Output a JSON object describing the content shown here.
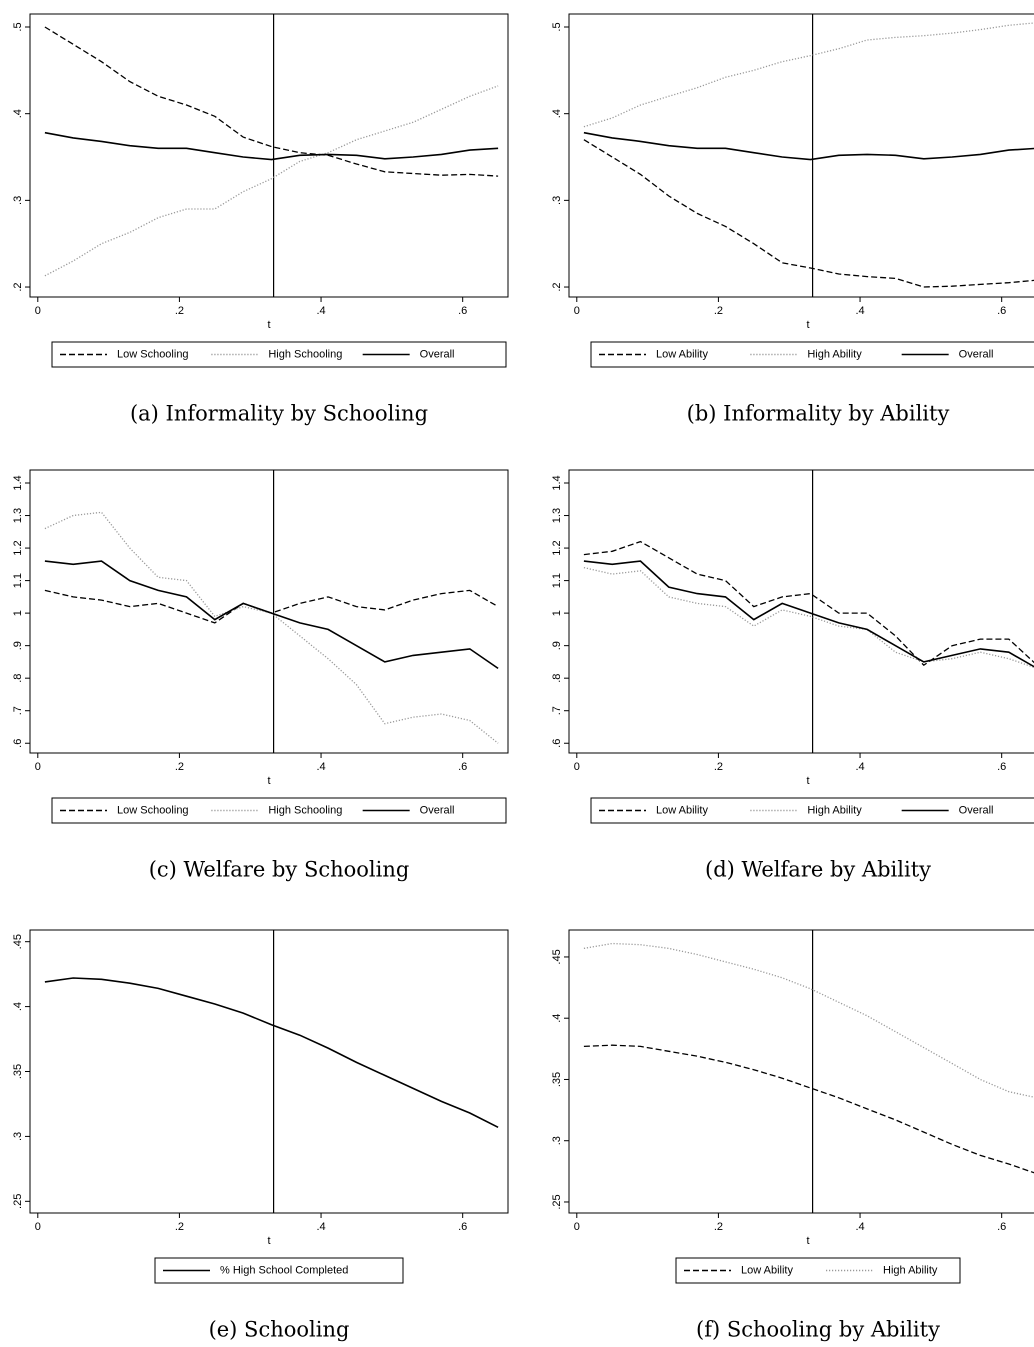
{
  "chart_data": [
    {
      "type": "line",
      "caption": "(a) Informality by Schooling",
      "xlabel": "t",
      "x": [
        0.01,
        0.05,
        0.09,
        0.13,
        0.17,
        0.21,
        0.25,
        0.29,
        0.33,
        0.37,
        0.41,
        0.45,
        0.49,
        0.53,
        0.57,
        0.61,
        0.65
      ],
      "series": [
        {
          "name": "Low Schooling",
          "color": "#000000",
          "dash": "dashed",
          "values": [
            0.5,
            0.48,
            0.46,
            0.437,
            0.42,
            0.41,
            0.397,
            0.373,
            0.362,
            0.355,
            0.352,
            0.342,
            0.333,
            0.331,
            0.329,
            0.33,
            0.328
          ]
        },
        {
          "name": "High Schooling",
          "color": "#999999",
          "dash": "dotted",
          "values": [
            0.213,
            0.23,
            0.25,
            0.263,
            0.28,
            0.29,
            0.29,
            0.31,
            0.325,
            0.345,
            0.355,
            0.37,
            0.38,
            0.39,
            0.405,
            0.42,
            0.432
          ]
        },
        {
          "name": "Overall",
          "color": "#000000",
          "dash": "solid",
          "values": [
            0.378,
            0.372,
            0.368,
            0.363,
            0.36,
            0.36,
            0.355,
            0.35,
            0.347,
            0.352,
            0.353,
            0.352,
            0.348,
            0.35,
            0.353,
            0.358,
            0.36
          ]
        }
      ],
      "xlim": [
        -0.011,
        0.664
      ],
      "xticks": [
        0,
        {
          "value": 0.2,
          "label": ".2"
        },
        {
          "value": 0.4,
          "label": ".4"
        },
        {
          "value": 0.6,
          "label": ".6"
        }
      ],
      "ylim": [
        0.1885,
        0.515
      ],
      "yticks": [
        {
          "value": 0.2,
          "label": ".2"
        },
        {
          "value": 0.3,
          "label": ".3"
        },
        {
          "value": 0.4,
          "label": ".4"
        },
        {
          "value": 0.5,
          "label": ".5"
        }
      ],
      "vline": 0.333
    },
    {
      "type": "line",
      "caption": "(b) Informality by Ability",
      "xlabel": "t",
      "x": [
        0.01,
        0.05,
        0.09,
        0.13,
        0.17,
        0.21,
        0.25,
        0.29,
        0.33,
        0.37,
        0.41,
        0.45,
        0.49,
        0.53,
        0.57,
        0.61,
        0.65
      ],
      "series": [
        {
          "name": "Low Ability",
          "color": "#000000",
          "dash": "dashed",
          "values": [
            0.37,
            0.35,
            0.33,
            0.305,
            0.285,
            0.27,
            0.25,
            0.228,
            0.222,
            0.215,
            0.212,
            0.21,
            0.2,
            0.201,
            0.203,
            0.205,
            0.208
          ]
        },
        {
          "name": "High Ability",
          "color": "#999999",
          "dash": "dotted",
          "values": [
            0.385,
            0.395,
            0.41,
            0.42,
            0.43,
            0.442,
            0.45,
            0.46,
            0.467,
            0.475,
            0.485,
            0.488,
            0.49,
            0.493,
            0.497,
            0.502,
            0.505
          ]
        },
        {
          "name": "Overall",
          "color": "#000000",
          "dash": "solid",
          "values": [
            0.378,
            0.372,
            0.368,
            0.363,
            0.36,
            0.36,
            0.355,
            0.35,
            0.347,
            0.352,
            0.353,
            0.352,
            0.348,
            0.35,
            0.353,
            0.358,
            0.36
          ]
        }
      ],
      "xlim": [
        -0.011,
        0.664
      ],
      "xticks": [
        0,
        {
          "value": 0.2,
          "label": ".2"
        },
        {
          "value": 0.4,
          "label": ".4"
        },
        {
          "value": 0.6,
          "label": ".6"
        }
      ],
      "ylim": [
        0.1885,
        0.515
      ],
      "yticks": [
        {
          "value": 0.2,
          "label": ".2"
        },
        {
          "value": 0.3,
          "label": ".3"
        },
        {
          "value": 0.4,
          "label": ".4"
        },
        {
          "value": 0.5,
          "label": ".5"
        }
      ],
      "vline": 0.333
    },
    {
      "type": "line",
      "caption": "(c) Welfare by Schooling",
      "xlabel": "t",
      "x": [
        0.01,
        0.05,
        0.09,
        0.13,
        0.17,
        0.21,
        0.25,
        0.29,
        0.33,
        0.37,
        0.41,
        0.45,
        0.49,
        0.53,
        0.57,
        0.61,
        0.65
      ],
      "series": [
        {
          "name": "Low Schooling",
          "color": "#000000",
          "dash": "dashed",
          "values": [
            1.07,
            1.05,
            1.04,
            1.02,
            1.03,
            1.0,
            0.97,
            1.03,
            1.0,
            1.03,
            1.05,
            1.02,
            1.01,
            1.04,
            1.06,
            1.07,
            1.02
          ]
        },
        {
          "name": "High Schooling",
          "color": "#999999",
          "dash": "dotted",
          "values": [
            1.26,
            1.3,
            1.31,
            1.2,
            1.11,
            1.1,
            0.99,
            1.02,
            1.0,
            0.93,
            0.86,
            0.78,
            0.66,
            0.68,
            0.69,
            0.67,
            0.6
          ]
        },
        {
          "name": "Overall",
          "color": "#000000",
          "dash": "solid",
          "values": [
            1.16,
            1.15,
            1.16,
            1.1,
            1.07,
            1.05,
            0.98,
            1.03,
            1.0,
            0.97,
            0.95,
            0.9,
            0.85,
            0.87,
            0.88,
            0.89,
            0.83
          ]
        }
      ],
      "xlim": [
        -0.011,
        0.664
      ],
      "xticks": [
        0,
        {
          "value": 0.2,
          "label": ".2"
        },
        {
          "value": 0.4,
          "label": ".4"
        },
        {
          "value": 0.6,
          "label": ".6"
        }
      ],
      "ylim": [
        0.57,
        1.44
      ],
      "yticks": [
        {
          "value": 0.6,
          "label": ".6"
        },
        {
          "value": 0.7,
          "label": ".7"
        },
        {
          "value": 0.8,
          "label": ".8"
        },
        {
          "value": 0.9,
          "label": ".9"
        },
        1,
        1.1,
        1.2,
        1.3,
        1.4
      ],
      "vline": 0.333
    },
    {
      "type": "line",
      "caption": "(d) Welfare by Ability",
      "xlabel": "t",
      "x": [
        0.01,
        0.05,
        0.09,
        0.13,
        0.17,
        0.21,
        0.25,
        0.29,
        0.33,
        0.37,
        0.41,
        0.45,
        0.49,
        0.53,
        0.57,
        0.61,
        0.65
      ],
      "series": [
        {
          "name": "Low Ability",
          "color": "#000000",
          "dash": "dashed",
          "values": [
            1.18,
            1.19,
            1.22,
            1.17,
            1.12,
            1.1,
            1.02,
            1.05,
            1.06,
            1.0,
            1.0,
            0.93,
            0.84,
            0.9,
            0.92,
            0.92,
            0.84
          ]
        },
        {
          "name": "High Ability",
          "color": "#999999",
          "dash": "dotted",
          "values": [
            1.14,
            1.12,
            1.13,
            1.05,
            1.03,
            1.02,
            0.96,
            1.01,
            0.99,
            0.96,
            0.95,
            0.88,
            0.85,
            0.86,
            0.88,
            0.86,
            0.83
          ]
        },
        {
          "name": "Overall",
          "color": "#000000",
          "dash": "solid",
          "values": [
            1.16,
            1.15,
            1.16,
            1.08,
            1.06,
            1.05,
            0.98,
            1.03,
            1.0,
            0.97,
            0.95,
            0.9,
            0.85,
            0.87,
            0.89,
            0.88,
            0.83
          ]
        }
      ],
      "xlim": [
        -0.011,
        0.664
      ],
      "xticks": [
        0,
        {
          "value": 0.2,
          "label": ".2"
        },
        {
          "value": 0.4,
          "label": ".4"
        },
        {
          "value": 0.6,
          "label": ".6"
        }
      ],
      "ylim": [
        0.57,
        1.44
      ],
      "yticks": [
        {
          "value": 0.6,
          "label": ".6"
        },
        {
          "value": 0.7,
          "label": ".7"
        },
        {
          "value": 0.8,
          "label": ".8"
        },
        {
          "value": 0.9,
          "label": ".9"
        },
        1,
        1.1,
        1.2,
        1.3,
        1.4
      ],
      "vline": 0.333
    },
    {
      "type": "line",
      "caption": "(e) Schooling",
      "xlabel": "t",
      "x": [
        0.01,
        0.05,
        0.09,
        0.13,
        0.17,
        0.21,
        0.25,
        0.29,
        0.33,
        0.37,
        0.41,
        0.45,
        0.49,
        0.53,
        0.57,
        0.61,
        0.65
      ],
      "series": [
        {
          "name": "% High School Completed",
          "color": "#000000",
          "dash": "solid",
          "values": [
            0.419,
            0.422,
            0.421,
            0.418,
            0.414,
            0.408,
            0.402,
            0.395,
            0.386,
            0.378,
            0.368,
            0.357,
            0.347,
            0.337,
            0.327,
            0.318,
            0.307
          ]
        }
      ],
      "xlim": [
        -0.011,
        0.664
      ],
      "xticks": [
        0,
        {
          "value": 0.2,
          "label": ".2"
        },
        {
          "value": 0.4,
          "label": ".4"
        },
        {
          "value": 0.6,
          "label": ".6"
        }
      ],
      "ylim": [
        0.241,
        0.459
      ],
      "yticks": [
        {
          "value": 0.25,
          "label": ".25"
        },
        {
          "value": 0.3,
          "label": ".3"
        },
        {
          "value": 0.35,
          "label": ".35"
        },
        {
          "value": 0.4,
          "label": ".4"
        },
        {
          "value": 0.45,
          "label": ".45"
        }
      ],
      "vline": 0.333
    },
    {
      "type": "line",
      "caption": "(f) Schooling by Ability",
      "xlabel": "t",
      "x": [
        0.01,
        0.05,
        0.09,
        0.13,
        0.17,
        0.21,
        0.25,
        0.29,
        0.33,
        0.37,
        0.41,
        0.45,
        0.49,
        0.53,
        0.57,
        0.61,
        0.65
      ],
      "series": [
        {
          "name": "Low Ability",
          "color": "#000000",
          "dash": "dashed",
          "values": [
            0.377,
            0.378,
            0.377,
            0.373,
            0.369,
            0.364,
            0.358,
            0.351,
            0.343,
            0.335,
            0.326,
            0.317,
            0.307,
            0.297,
            0.288,
            0.281,
            0.273
          ]
        },
        {
          "name": "High Ability",
          "color": "#999999",
          "dash": "dotted",
          "values": [
            0.457,
            0.461,
            0.46,
            0.457,
            0.452,
            0.446,
            0.44,
            0.433,
            0.424,
            0.413,
            0.402,
            0.389,
            0.376,
            0.363,
            0.35,
            0.34,
            0.335
          ]
        }
      ],
      "xlim": [
        -0.011,
        0.664
      ],
      "xticks": [
        0,
        {
          "value": 0.2,
          "label": ".2"
        },
        {
          "value": 0.4,
          "label": ".4"
        },
        {
          "value": 0.6,
          "label": ".6"
        }
      ],
      "ylim": [
        0.241,
        0.472
      ],
      "yticks": [
        {
          "value": 0.25,
          "label": ".25"
        },
        {
          "value": 0.3,
          "label": ".3"
        },
        {
          "value": 0.35,
          "label": ".35"
        },
        {
          "value": 0.4,
          "label": ".4"
        },
        {
          "value": 0.45,
          "label": ".45"
        }
      ],
      "vline": 0.333
    }
  ]
}
